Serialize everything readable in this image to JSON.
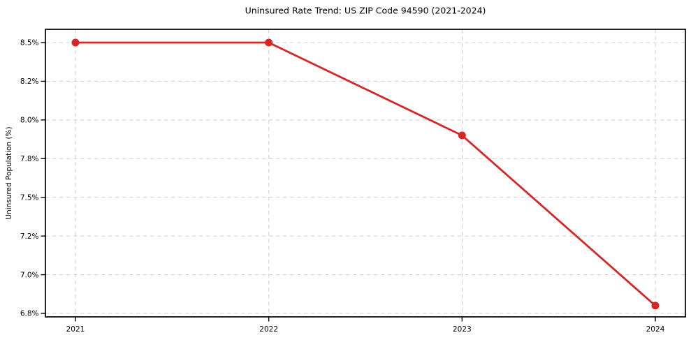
{
  "chart_data": {
    "type": "line",
    "title": "Uninsured Rate Trend: US ZIP Code 94590 (2021-2024)",
    "xlabel": "",
    "ylabel": "Uninsured Population (%)",
    "categories": [
      "2021",
      "2022",
      "2023",
      "2024"
    ],
    "series": [
      {
        "name": "Uninsured Population (%)",
        "values": [
          8.5,
          8.5,
          7.92,
          6.84
        ],
        "color": "#d62728",
        "marker": "circle"
      }
    ],
    "y_ticks": {
      "labels": [
        "8.5%",
        "8.2%",
        "8.0%",
        "7.8%",
        "7.5%",
        "7.2%",
        "7.0%",
        "6.8%"
      ],
      "values": [
        8.5,
        8.2,
        8.0,
        7.8,
        7.5,
        7.2,
        7.0,
        6.8
      ]
    },
    "x_tick_labels": [
      "2021",
      "2022",
      "2023",
      "2024"
    ],
    "legend": "none",
    "grid": {
      "style": "dashed",
      "color": "#d3d3d3",
      "both_axes": true
    },
    "axis_color": "#000000",
    "background_color": "#ffffff"
  }
}
